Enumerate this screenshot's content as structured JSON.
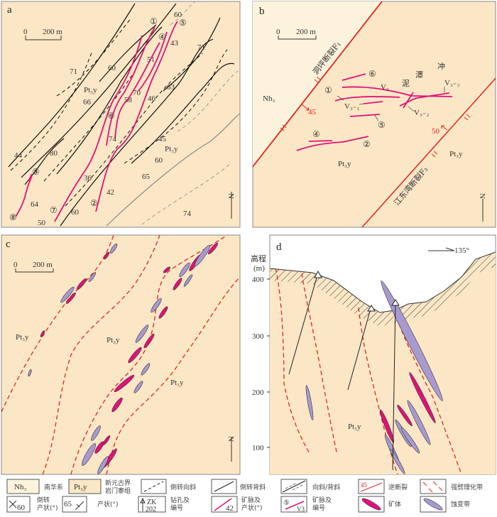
{
  "colors": {
    "host_rock": "#fbe7c5",
    "nanhua": "#fdf3dc",
    "vein": "#e0127a",
    "fault": "#e52320",
    "alteration": "#a89ad0",
    "orebody": "#e0127a"
  },
  "panel_a": {
    "label": "a",
    "scale_zero": "0",
    "scale_text": "200 m",
    "north": "N",
    "formations": [
      "Pt₃y",
      "Pt₃y"
    ],
    "veins": [
      "①",
      "②",
      "④",
      "⑤",
      "⑥",
      "⑦",
      "⑧",
      "⑨"
    ],
    "attitudes": [
      "60",
      "43",
      "71",
      "51",
      "60",
      "71",
      "63",
      "70",
      "46",
      "58",
      "66",
      "74",
      "45",
      "60",
      "80",
      "44",
      "65",
      "36",
      "42",
      "64",
      "60",
      "74",
      "50"
    ]
  },
  "panel_b": {
    "label": "b",
    "scale_zero": "0",
    "scale_text": "200 m",
    "north": "N",
    "fault_f1": "洞坪断裂F₁",
    "fault_f3": "江东湾断裂F₃",
    "fault_f1_dip": "45",
    "fault_f3_dip": "50",
    "formation_nh": "Nh₃",
    "formations": [
      "Pt₃y",
      "Pt₃y"
    ],
    "place_name": [
      "泥",
      "潭",
      "冲"
    ],
    "veins": [
      "①",
      "②",
      "④",
      "⑤",
      "⑥"
    ],
    "vein_codes": [
      "V₃",
      "V₃₋₁",
      "V₃₋₂",
      "V₃₋₃"
    ]
  },
  "panel_c": {
    "label": "c",
    "scale_zero": "0",
    "scale_text": "200 m",
    "north": "N",
    "formations": [
      "Pt₃y",
      "Pt₃y",
      "Pt₃y"
    ]
  },
  "panel_d": {
    "label": "d",
    "axis_title": "高程",
    "axis_unit": "(m)",
    "y_ticks": [
      "400",
      "300",
      "200",
      "100"
    ],
    "azimuth": "135°",
    "formation": "Pt₃y"
  },
  "legend": [
    {
      "symbol": "Nh₃",
      "label": "南华系"
    },
    {
      "symbol": "Pt₃y",
      "label": "新元古界",
      "label2": "岩门寨组"
    },
    {
      "label": "倒转向斜"
    },
    {
      "label": "倒转背斜"
    },
    {
      "label": "向斜/背斜"
    },
    {
      "symbol": "45",
      "label": "逆断裂"
    },
    {
      "label": "强劈理化带"
    },
    {
      "symbol": "60",
      "label": "倒转",
      "label2": "产状(°)"
    },
    {
      "symbol": "65",
      "label": "产状(°)"
    },
    {
      "symbol": "ZK",
      "symbol2": "202",
      "label": "钻孔及",
      "label2": "编号"
    },
    {
      "symbol": "42",
      "label": "矿脉及",
      "label2": "产状(°)"
    },
    {
      "symbol": "⑤",
      "symbol2": "V3",
      "label": "矿脉及",
      "label2": "编号"
    },
    {
      "label": "矿体"
    },
    {
      "label": "蚀变带"
    }
  ]
}
